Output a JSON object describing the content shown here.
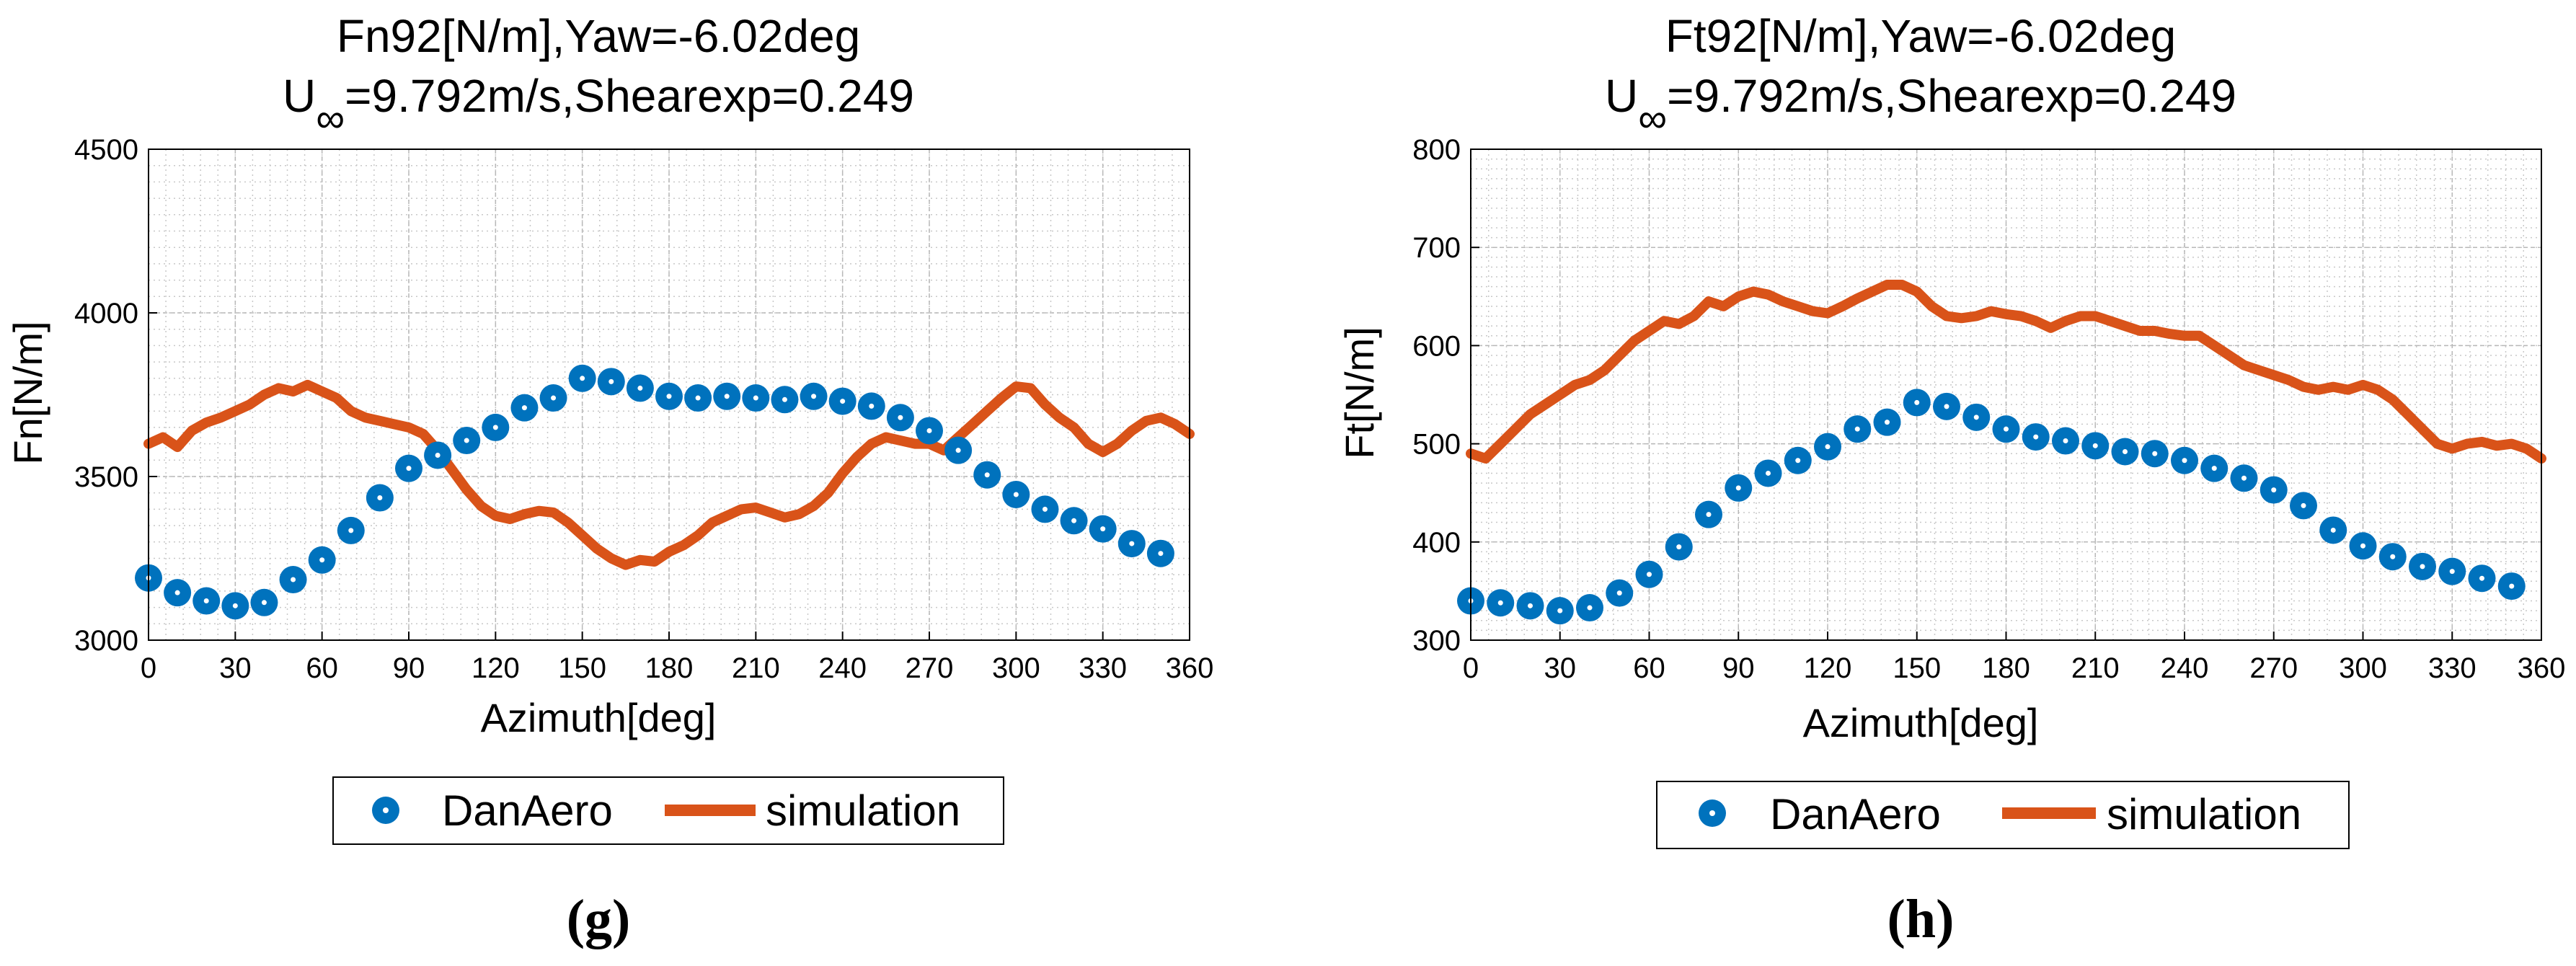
{
  "colors": {
    "danaero": "#0072BD",
    "simulation": "#D95319",
    "grid": "#c8c8c8"
  },
  "legend": {
    "danaero": "DanAero",
    "simulation": "simulation"
  },
  "chart_data": [
    {
      "type": "line",
      "panel": "(g)",
      "title_line1": "Fn92[N/m],Yaw=-6.02deg",
      "title_line2_u": "U",
      "title_line2_sub": "∞",
      "title_line2_rest": "=9.792m/s,Shearexp=0.249",
      "xlabel": "Azimuth[deg]",
      "ylabel": "Fn[N/m]",
      "xlim": [
        0,
        360
      ],
      "ylim": [
        3000,
        4500
      ],
      "xticks": [
        0,
        30,
        60,
        90,
        120,
        150,
        180,
        210,
        240,
        270,
        300,
        330,
        360
      ],
      "yticks": [
        3000,
        3500,
        4000,
        4500
      ],
      "grid": true,
      "series": [
        {
          "name": "DanAero",
          "style": "markers",
          "x": [
            0,
            10,
            20,
            30,
            40,
            50,
            60,
            70,
            80,
            90,
            100,
            110,
            120,
            130,
            140,
            150,
            160,
            170,
            180,
            190,
            200,
            210,
            220,
            230,
            240,
            250,
            260,
            270,
            280,
            290,
            300,
            310,
            320,
            330,
            340,
            350
          ],
          "y": [
            3190,
            3145,
            3120,
            3105,
            3115,
            3185,
            3245,
            3335,
            3435,
            3525,
            3565,
            3610,
            3650,
            3710,
            3740,
            3800,
            3790,
            3770,
            3745,
            3740,
            3745,
            3740,
            3735,
            3745,
            3730,
            3715,
            3680,
            3640,
            3580,
            3505,
            3445,
            3400,
            3365,
            3340,
            3295,
            3265
          ]
        },
        {
          "name": "simulation",
          "style": "line",
          "x": [
            0,
            5,
            10,
            15,
            20,
            25,
            30,
            35,
            40,
            45,
            50,
            55,
            60,
            65,
            70,
            75,
            80,
            85,
            90,
            95,
            100,
            105,
            110,
            115,
            120,
            125,
            130,
            135,
            140,
            145,
            150,
            155,
            160,
            165,
            170,
            175,
            180,
            185,
            190,
            195,
            200,
            205,
            210,
            215,
            220,
            225,
            230,
            235,
            240,
            245,
            250,
            255,
            260,
            265,
            270,
            275,
            280,
            285,
            290,
            295,
            300,
            305,
            310,
            315,
            320,
            325,
            330,
            335,
            340,
            345,
            350,
            355,
            360
          ],
          "y": [
            3600,
            3620,
            3590,
            3640,
            3665,
            3680,
            3700,
            3720,
            3750,
            3770,
            3760,
            3780,
            3760,
            3740,
            3700,
            3680,
            3670,
            3660,
            3650,
            3630,
            3580,
            3520,
            3460,
            3410,
            3380,
            3370,
            3385,
            3395,
            3390,
            3360,
            3320,
            3280,
            3250,
            3230,
            3245,
            3240,
            3270,
            3290,
            3320,
            3360,
            3380,
            3400,
            3405,
            3390,
            3375,
            3385,
            3410,
            3450,
            3510,
            3560,
            3600,
            3620,
            3610,
            3600,
            3600,
            3580,
            3620,
            3660,
            3700,
            3740,
            3775,
            3770,
            3720,
            3680,
            3650,
            3600,
            3575,
            3600,
            3640,
            3670,
            3680,
            3660,
            3630
          ]
        }
      ]
    },
    {
      "type": "line",
      "panel": "(h)",
      "title_line1": "Ft92[N/m],Yaw=-6.02deg",
      "title_line2_u": "U",
      "title_line2_sub": "∞",
      "title_line2_rest": "=9.792m/s,Shearexp=0.249",
      "xlabel": "Azimuth[deg]",
      "ylabel": "Ft[N/m]",
      "xlim": [
        0,
        360
      ],
      "ylim": [
        300,
        800
      ],
      "xticks": [
        0,
        30,
        60,
        90,
        120,
        150,
        180,
        210,
        240,
        270,
        300,
        330,
        360
      ],
      "yticks": [
        300,
        400,
        500,
        600,
        700,
        800
      ],
      "grid": true,
      "series": [
        {
          "name": "DanAero",
          "style": "markers",
          "x": [
            0,
            10,
            20,
            30,
            40,
            50,
            60,
            70,
            80,
            90,
            100,
            110,
            120,
            130,
            140,
            150,
            160,
            170,
            180,
            190,
            200,
            210,
            220,
            230,
            240,
            250,
            260,
            270,
            280,
            290,
            300,
            310,
            320,
            330,
            340,
            350
          ],
          "y": [
            340,
            338,
            335,
            330,
            333,
            348,
            367,
            395,
            428,
            455,
            470,
            483,
            497,
            515,
            522,
            542,
            538,
            527,
            515,
            507,
            503,
            498,
            492,
            490,
            483,
            475,
            465,
            453,
            437,
            412,
            396,
            385,
            375,
            370,
            363,
            355
          ]
        },
        {
          "name": "simulation",
          "style": "line",
          "x": [
            0,
            5,
            10,
            15,
            20,
            25,
            30,
            35,
            40,
            45,
            50,
            55,
            60,
            65,
            70,
            75,
            80,
            85,
            90,
            95,
            100,
            105,
            110,
            115,
            120,
            125,
            130,
            135,
            140,
            145,
            150,
            155,
            160,
            165,
            170,
            175,
            180,
            185,
            190,
            195,
            200,
            205,
            210,
            215,
            220,
            225,
            230,
            235,
            240,
            245,
            250,
            255,
            260,
            265,
            270,
            275,
            280,
            285,
            290,
            295,
            300,
            305,
            310,
            315,
            320,
            325,
            330,
            335,
            340,
            345,
            350,
            355,
            360
          ],
          "y": [
            490,
            485,
            500,
            515,
            530,
            540,
            550,
            560,
            565,
            575,
            590,
            605,
            615,
            625,
            622,
            630,
            645,
            640,
            650,
            655,
            652,
            645,
            640,
            635,
            633,
            640,
            648,
            655,
            662,
            662,
            655,
            640,
            630,
            628,
            630,
            635,
            632,
            630,
            625,
            618,
            625,
            630,
            630,
            625,
            620,
            615,
            615,
            612,
            610,
            610,
            600,
            590,
            580,
            575,
            570,
            565,
            558,
            555,
            558,
            555,
            560,
            555,
            545,
            530,
            515,
            500,
            495,
            500,
            502,
            498,
            500,
            495,
            485
          ]
        }
      ]
    }
  ]
}
